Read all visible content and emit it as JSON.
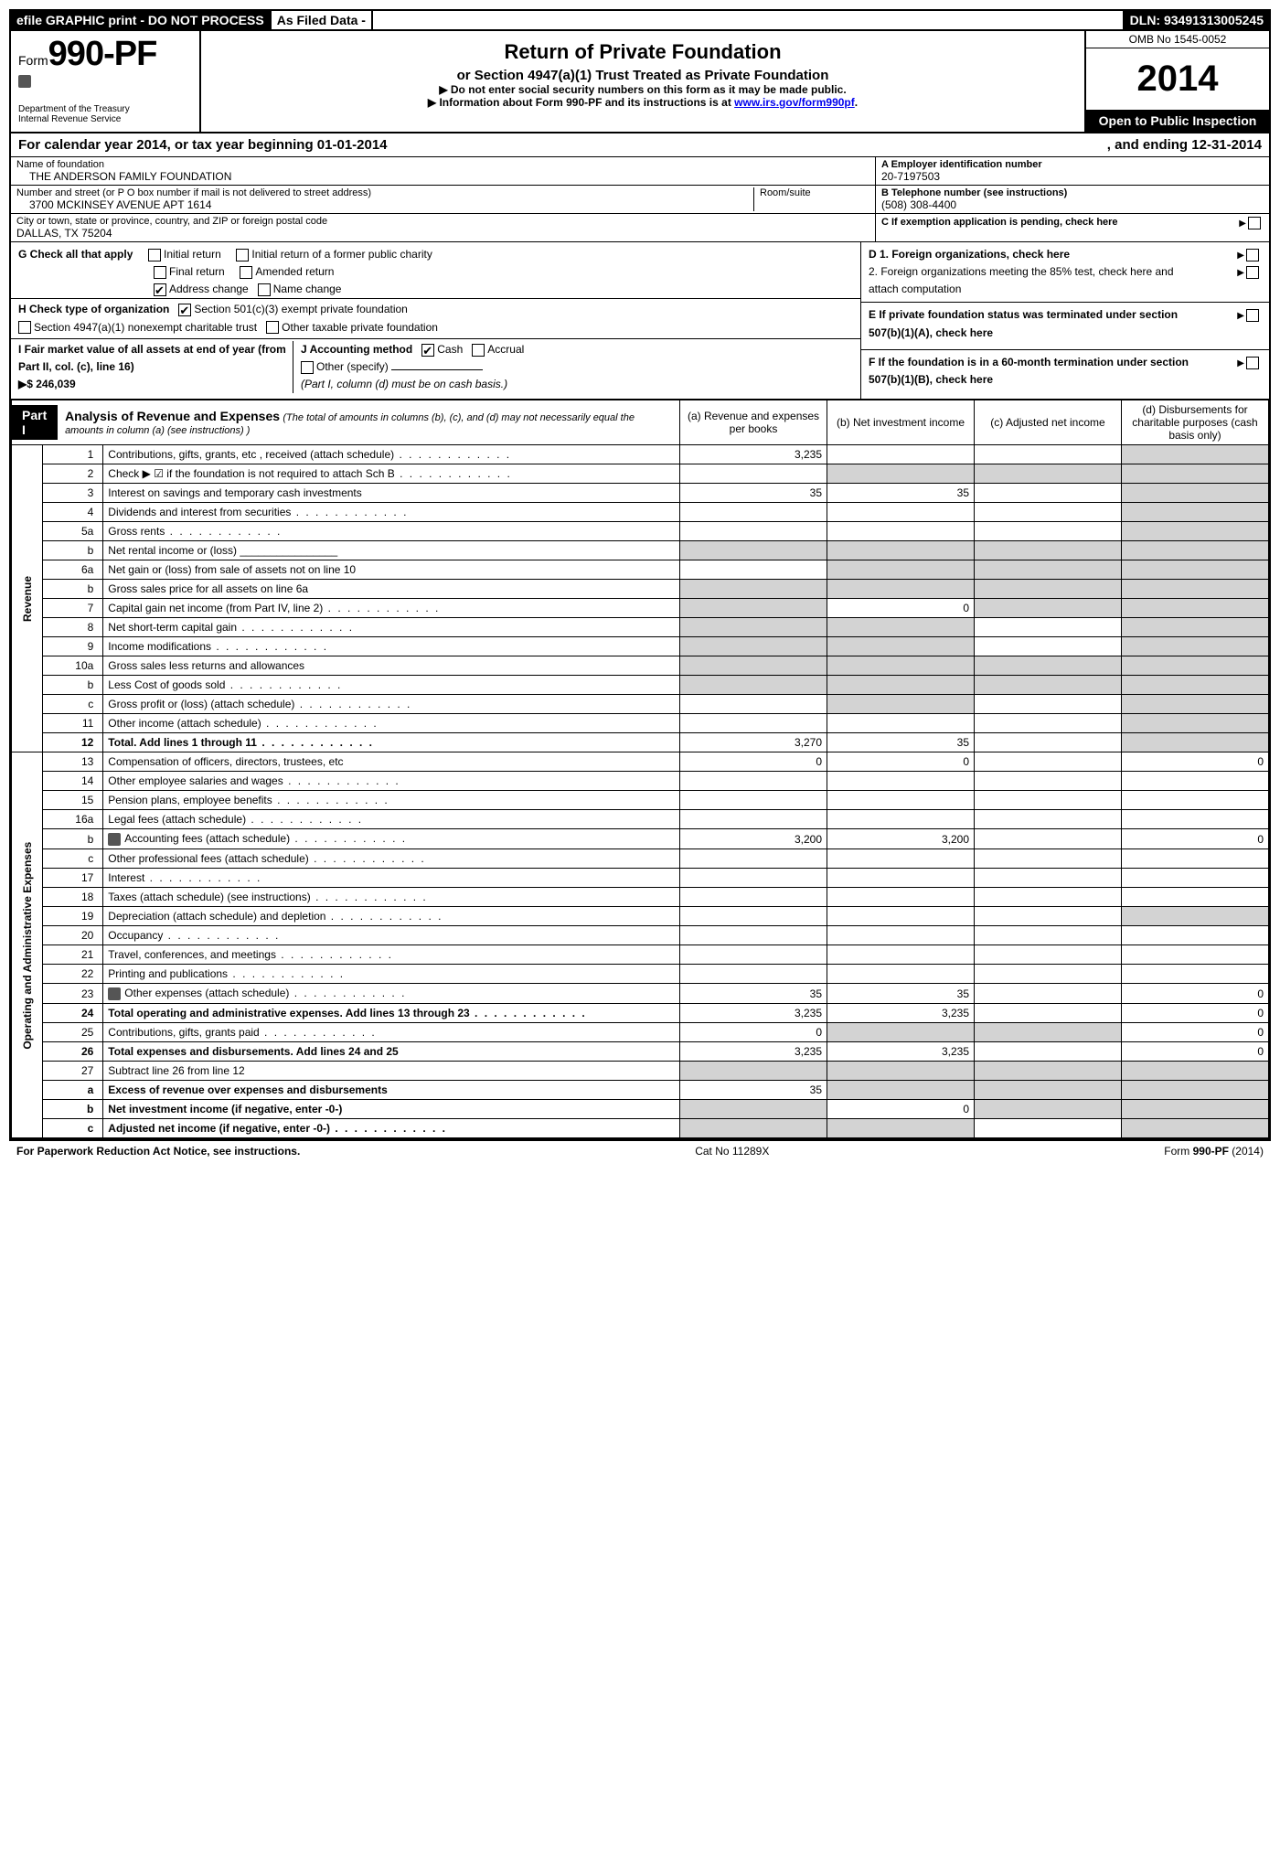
{
  "topbar": {
    "efile": "efile GRAPHIC print - DO NOT PROCESS",
    "asfiled": "As Filed Data -",
    "dln": "DLN: 93491313005245"
  },
  "header": {
    "form_prefix": "Form",
    "form_num": "990-PF",
    "dept1": "Department of the Treasury",
    "dept2": "Internal Revenue Service",
    "title": "Return of Private Foundation",
    "subtitle": "or Section 4947(a)(1) Trust Treated as Private Foundation",
    "note1": "▶ Do not enter social security numbers on this form as it may be made public.",
    "note2_pre": "▶ Information about Form 990-PF and its instructions is at ",
    "note2_link": "www.irs.gov/form990pf",
    "note2_post": ".",
    "omb": "OMB No 1545-0052",
    "year": "2014",
    "open": "Open to Public Inspection"
  },
  "calyear": {
    "left": "For calendar year 2014, or tax year beginning 01-01-2014",
    "right": ", and ending 12-31-2014"
  },
  "id": {
    "name_label": "Name of foundation",
    "name": "THE ANDERSON FAMILY FOUNDATION",
    "addr_label": "Number and street (or P O  box number if mail is not delivered to street address)",
    "addr": "3700 MCKINSEY AVENUE APT 1614",
    "room_label": "Room/suite",
    "city_label": "City or town, state or province, country, and ZIP or foreign postal code",
    "city": "DALLAS, TX  75204",
    "a_label": "A Employer identification number",
    "a_val": "20-7197503",
    "b_label": "B Telephone number (see instructions)",
    "b_val": "(508) 308-4400",
    "c_label": "C  If exemption application is pending, check here"
  },
  "checks": {
    "g_label": "G Check all that apply",
    "g1": "Initial return",
    "g2": "Initial return of a former public charity",
    "g3": "Final return",
    "g4": "Amended return",
    "g5": "Address change",
    "g6": "Name change",
    "h_label": "H Check type of organization",
    "h1": "Section 501(c)(3) exempt private foundation",
    "h2": "Section 4947(a)(1) nonexempt charitable trust",
    "h3": "Other taxable private foundation",
    "i_label": "I Fair market value of all assets at end of year (from Part II, col. (c), line 16)",
    "i_val": "▶$  246,039",
    "j_label": "J Accounting method",
    "j1": "Cash",
    "j2": "Accrual",
    "j3": "Other (specify)",
    "j_note": "(Part I, column (d) must be on cash basis.)",
    "d1": "D 1.  Foreign organizations, check here",
    "d2": "2.  Foreign organizations meeting the 85% test, check here and attach computation",
    "e": "E  If private foundation status was terminated under section 507(b)(1)(A), check here",
    "f": "F  If the foundation is in a 60-month termination under section 507(b)(1)(B), check here"
  },
  "part1": {
    "tag": "Part I",
    "title": "Analysis of Revenue and Expenses",
    "desc": "(The total of amounts in columns (b), (c), and (d) may not necessarily equal the amounts in column (a) (see instructions) )",
    "cols": {
      "a": "(a) Revenue and expenses per books",
      "b": "(b) Net investment income",
      "c": "(c) Adjusted net income",
      "d": "(d) Disbursements for charitable purposes (cash basis only)"
    },
    "sides": {
      "rev": "Revenue",
      "exp": "Operating and Administrative Expenses"
    },
    "rows": [
      {
        "n": "1",
        "label": "Contributions, gifts, grants, etc , received (attach schedule)",
        "a": "3,235",
        "b": "",
        "c": "",
        "d": "",
        "grey_d": true,
        "dots": true
      },
      {
        "n": "2",
        "label": "Check ▶ ☑ if the foundation is not required to attach Sch B",
        "a": "",
        "b": "",
        "c": "",
        "d": "",
        "grey_b": true,
        "grey_c": true,
        "grey_d": true,
        "notrequired": true,
        "dots": true
      },
      {
        "n": "3",
        "label": "Interest on savings and temporary cash investments",
        "a": "35",
        "b": "35",
        "c": "",
        "d": "",
        "grey_d": true
      },
      {
        "n": "4",
        "label": "Dividends and interest from securities",
        "a": "",
        "b": "",
        "c": "",
        "d": "",
        "grey_d": true,
        "dots": true
      },
      {
        "n": "5a",
        "label": "Gross rents",
        "a": "",
        "b": "",
        "c": "",
        "d": "",
        "grey_d": true,
        "dots": true
      },
      {
        "n": "b",
        "label": "Net rental income or (loss) ________________",
        "a": "",
        "b": "",
        "c": "",
        "d": "",
        "grey_a": true,
        "grey_b": true,
        "grey_c": true,
        "grey_d": true
      },
      {
        "n": "6a",
        "label": "Net gain or (loss) from sale of assets not on line 10",
        "a": "",
        "b": "",
        "c": "",
        "d": "",
        "grey_b": true,
        "grey_c": true,
        "grey_d": true
      },
      {
        "n": "b",
        "label": "Gross sales price for all assets on line 6a",
        "a": "",
        "b": "",
        "c": "",
        "d": "",
        "grey_a": true,
        "grey_b": true,
        "grey_c": true,
        "grey_d": true
      },
      {
        "n": "7",
        "label": "Capital gain net income (from Part IV, line 2)",
        "a": "",
        "b": "0",
        "c": "",
        "d": "",
        "grey_a": true,
        "grey_c": true,
        "grey_d": true,
        "dots": true
      },
      {
        "n": "8",
        "label": "Net short-term capital gain",
        "a": "",
        "b": "",
        "c": "",
        "d": "",
        "grey_a": true,
        "grey_b": true,
        "grey_d": true,
        "dots": true
      },
      {
        "n": "9",
        "label": "Income modifications",
        "a": "",
        "b": "",
        "c": "",
        "d": "",
        "grey_a": true,
        "grey_b": true,
        "grey_d": true,
        "dots": true
      },
      {
        "n": "10a",
        "label": "Gross sales less returns and allowances",
        "a": "",
        "b": "",
        "c": "",
        "d": "",
        "grey_a": true,
        "grey_b": true,
        "grey_c": true,
        "grey_d": true
      },
      {
        "n": "b",
        "label": "Less  Cost of goods sold",
        "a": "",
        "b": "",
        "c": "",
        "d": "",
        "grey_a": true,
        "grey_b": true,
        "grey_c": true,
        "grey_d": true,
        "dots": true
      },
      {
        "n": "c",
        "label": "Gross profit or (loss) (attach schedule)",
        "a": "",
        "b": "",
        "c": "",
        "d": "",
        "grey_b": true,
        "grey_d": true,
        "dots": true
      },
      {
        "n": "11",
        "label": "Other income (attach schedule)",
        "a": "",
        "b": "",
        "c": "",
        "d": "",
        "grey_d": true,
        "dots": true
      },
      {
        "n": "12",
        "label": "Total. Add lines 1 through 11",
        "a": "3,270",
        "b": "35",
        "c": "",
        "d": "",
        "bold": true,
        "grey_d": true,
        "dots": true
      },
      {
        "n": "13",
        "label": "Compensation of officers, directors, trustees, etc",
        "a": "0",
        "b": "0",
        "c": "",
        "d": "0",
        "section": "exp"
      },
      {
        "n": "14",
        "label": "Other employee salaries and wages",
        "a": "",
        "b": "",
        "c": "",
        "d": "",
        "dots": true
      },
      {
        "n": "15",
        "label": "Pension plans, employee benefits",
        "a": "",
        "b": "",
        "c": "",
        "d": "",
        "dots": true
      },
      {
        "n": "16a",
        "label": "Legal fees (attach schedule)",
        "a": "",
        "b": "",
        "c": "",
        "d": "",
        "dots": true
      },
      {
        "n": "b",
        "label": "Accounting fees (attach schedule)",
        "a": "3,200",
        "b": "3,200",
        "c": "",
        "d": "0",
        "icon": true,
        "dots": true
      },
      {
        "n": "c",
        "label": "Other professional fees (attach schedule)",
        "a": "",
        "b": "",
        "c": "",
        "d": "",
        "dots": true
      },
      {
        "n": "17",
        "label": "Interest",
        "a": "",
        "b": "",
        "c": "",
        "d": "",
        "dots": true
      },
      {
        "n": "18",
        "label": "Taxes (attach schedule) (see instructions)",
        "a": "",
        "b": "",
        "c": "",
        "d": "",
        "dots": true
      },
      {
        "n": "19",
        "label": "Depreciation (attach schedule) and depletion",
        "a": "",
        "b": "",
        "c": "",
        "d": "",
        "grey_d": true,
        "dots": true
      },
      {
        "n": "20",
        "label": "Occupancy",
        "a": "",
        "b": "",
        "c": "",
        "d": "",
        "dots": true
      },
      {
        "n": "21",
        "label": "Travel, conferences, and meetings",
        "a": "",
        "b": "",
        "c": "",
        "d": "",
        "dots": true
      },
      {
        "n": "22",
        "label": "Printing and publications",
        "a": "",
        "b": "",
        "c": "",
        "d": "",
        "dots": true
      },
      {
        "n": "23",
        "label": "Other expenses (attach schedule)",
        "a": "35",
        "b": "35",
        "c": "",
        "d": "0",
        "icon": true,
        "dots": true
      },
      {
        "n": "24",
        "label": "Total operating and administrative expenses. Add lines 13 through 23",
        "a": "3,235",
        "b": "3,235",
        "c": "",
        "d": "0",
        "bold": true,
        "dots": true
      },
      {
        "n": "25",
        "label": "Contributions, gifts, grants paid",
        "a": "0",
        "b": "",
        "c": "",
        "d": "0",
        "grey_b": true,
        "grey_c": true,
        "dots": true
      },
      {
        "n": "26",
        "label": "Total expenses and disbursements. Add lines 24 and 25",
        "a": "3,235",
        "b": "3,235",
        "c": "",
        "d": "0",
        "bold": true
      },
      {
        "n": "27",
        "label": "Subtract line 26 from line 12",
        "a": "",
        "b": "",
        "c": "",
        "d": "",
        "grey_a": true,
        "grey_b": true,
        "grey_c": true,
        "grey_d": true
      },
      {
        "n": "a",
        "label": "Excess of revenue over expenses and disbursements",
        "a": "35",
        "b": "",
        "c": "",
        "d": "",
        "bold": true,
        "grey_b": true,
        "grey_c": true,
        "grey_d": true
      },
      {
        "n": "b",
        "label": "Net investment income (if negative, enter -0-)",
        "a": "",
        "b": "0",
        "c": "",
        "d": "",
        "bold": true,
        "grey_a": true,
        "grey_c": true,
        "grey_d": true
      },
      {
        "n": "c",
        "label": "Adjusted net income (if negative, enter -0-)",
        "a": "",
        "b": "",
        "c": "",
        "d": "",
        "bold": true,
        "grey_a": true,
        "grey_b": true,
        "grey_d": true,
        "dots": true
      }
    ]
  },
  "footer": {
    "left": "For Paperwork Reduction Act Notice, see instructions.",
    "mid": "Cat No  11289X",
    "right": "Form 990-PF (2014)"
  }
}
